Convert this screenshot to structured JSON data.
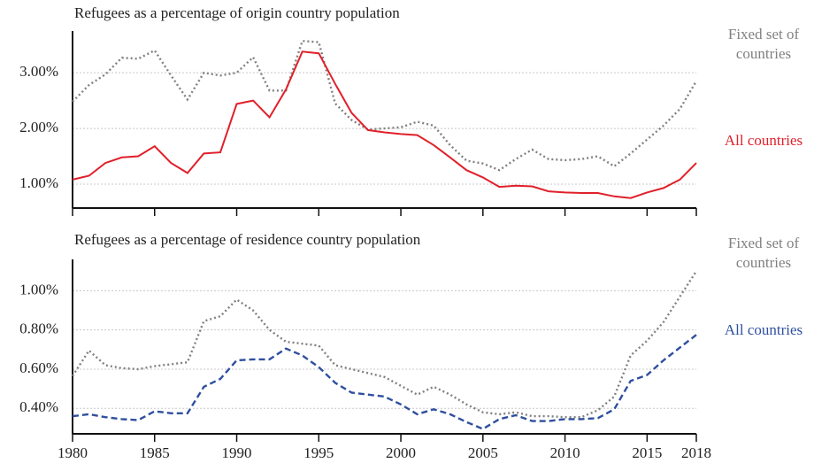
{
  "chart_data": [
    {
      "type": "line",
      "title": "Refugees as a percentage of origin country population",
      "x": [
        1980,
        1981,
        1982,
        1983,
        1984,
        1985,
        1986,
        1987,
        1988,
        1989,
        1990,
        1991,
        1992,
        1993,
        1994,
        1995,
        1996,
        1997,
        1998,
        1999,
        2000,
        2001,
        2002,
        2003,
        2004,
        2005,
        2006,
        2007,
        2008,
        2009,
        2010,
        2011,
        2012,
        2013,
        2014,
        2015,
        2016,
        2017,
        2018
      ],
      "xlim": [
        1980,
        2018
      ],
      "xticks": [
        1980,
        1985,
        1990,
        1995,
        2000,
        2005,
        2010,
        2015,
        2018
      ],
      "ylim": [
        0.57,
        3.75
      ],
      "yticks": [
        {
          "value": 1,
          "label": "1.00%"
        },
        {
          "value": 2,
          "label": "2.00%"
        },
        {
          "value": 3,
          "label": "3.00%"
        }
      ],
      "grid": true,
      "series": [
        {
          "name": "Fixed set of countries",
          "color": "#808080",
          "style": "dotted",
          "values": [
            2.48,
            2.78,
            2.97,
            3.27,
            3.25,
            3.4,
            2.95,
            2.52,
            3.0,
            2.95,
            3.0,
            3.28,
            2.68,
            2.68,
            3.57,
            3.55,
            2.45,
            2.15,
            1.98,
            2.0,
            2.02,
            2.12,
            2.05,
            1.7,
            1.42,
            1.37,
            1.25,
            1.45,
            1.62,
            1.45,
            1.43,
            1.45,
            1.5,
            1.32,
            1.55,
            1.8,
            2.05,
            2.35,
            2.85
          ]
        },
        {
          "name": "All countries",
          "color": "#e0202a",
          "style": "solid",
          "values": [
            1.08,
            1.15,
            1.38,
            1.48,
            1.5,
            1.68,
            1.38,
            1.2,
            1.55,
            1.57,
            2.44,
            2.5,
            2.2,
            2.7,
            3.38,
            3.35,
            2.8,
            2.28,
            1.97,
            1.93,
            1.9,
            1.88,
            1.7,
            1.48,
            1.25,
            1.12,
            0.95,
            0.97,
            0.96,
            0.87,
            0.85,
            0.84,
            0.84,
            0.78,
            0.75,
            0.85,
            0.93,
            1.08,
            1.38
          ]
        }
      ]
    },
    {
      "type": "line",
      "title": "Refugees as a percentage of residence country population",
      "x": [
        1980,
        1981,
        1982,
        1983,
        1984,
        1985,
        1986,
        1987,
        1988,
        1989,
        1990,
        1991,
        1992,
        1993,
        1994,
        1995,
        1996,
        1997,
        1998,
        1999,
        2000,
        2001,
        2002,
        2003,
        2004,
        2005,
        2006,
        2007,
        2008,
        2009,
        2010,
        2011,
        2012,
        2013,
        2014,
        2015,
        2016,
        2017,
        2018
      ],
      "xlim": [
        1980,
        2018
      ],
      "xticks": [
        1980,
        1985,
        1990,
        1995,
        2000,
        2005,
        2010,
        2015,
        2018
      ],
      "ylim": [
        0.27,
        1.16
      ],
      "yticks": [
        {
          "value": 0.4,
          "label": "0.40%"
        },
        {
          "value": 0.6,
          "label": "0.60%"
        },
        {
          "value": 0.8,
          "label": "0.80%"
        },
        {
          "value": 1,
          "label": "1.00%"
        }
      ],
      "grid": true,
      "series": [
        {
          "name": "Fixed set of countries",
          "color": "#808080",
          "style": "dotted",
          "values": [
            0.565,
            0.695,
            0.62,
            0.605,
            0.6,
            0.615,
            0.625,
            0.635,
            0.845,
            0.87,
            0.955,
            0.9,
            0.8,
            0.74,
            0.73,
            0.72,
            0.62,
            0.6,
            0.58,
            0.56,
            0.515,
            0.47,
            0.51,
            0.47,
            0.42,
            0.38,
            0.37,
            0.38,
            0.36,
            0.36,
            0.355,
            0.355,
            0.39,
            0.46,
            0.67,
            0.745,
            0.84,
            0.97,
            1.1
          ]
        },
        {
          "name": "All countries",
          "color": "#2f4f9f",
          "style": "dashed",
          "values": [
            0.36,
            0.37,
            0.355,
            0.345,
            0.34,
            0.385,
            0.375,
            0.375,
            0.51,
            0.55,
            0.645,
            0.65,
            0.65,
            0.705,
            0.67,
            0.61,
            0.53,
            0.48,
            0.47,
            0.46,
            0.42,
            0.37,
            0.395,
            0.37,
            0.33,
            0.295,
            0.345,
            0.365,
            0.335,
            0.335,
            0.345,
            0.345,
            0.35,
            0.395,
            0.54,
            0.57,
            0.645,
            0.71,
            0.775
          ]
        }
      ]
    }
  ]
}
